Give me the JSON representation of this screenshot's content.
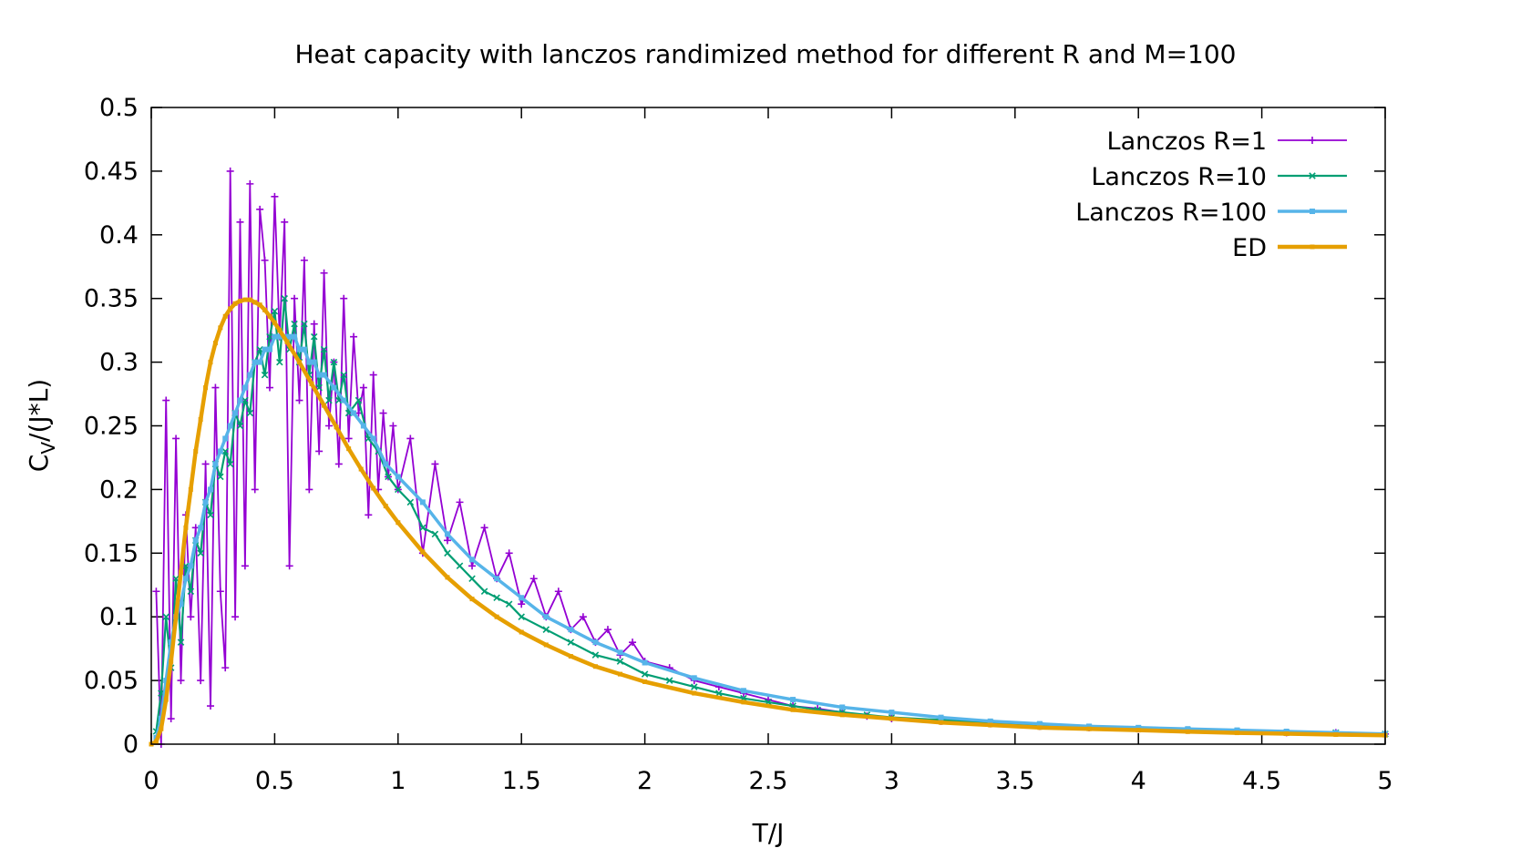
{
  "chart_data": {
    "type": "line",
    "title": "Heat capacity with lanczos randimized method for different R and M=100",
    "xlabel": "T/J",
    "ylabel_main": "C",
    "ylabel_sub": "V",
    "ylabel_rest": "/(J*L)",
    "xlim": [
      0,
      5
    ],
    "ylim": [
      0,
      0.5
    ],
    "x_ticks": [
      0,
      0.5,
      1,
      1.5,
      2,
      2.5,
      3,
      3.5,
      4,
      4.5,
      5
    ],
    "y_ticks": [
      0,
      0.05,
      0.1,
      0.15,
      0.2,
      0.25,
      0.3,
      0.35,
      0.4,
      0.45,
      0.5
    ],
    "grid": false,
    "legend_position": "top-right",
    "series": [
      {
        "name": "Lanczos R=1",
        "color": "#9400d3",
        "marker": "plus",
        "x": [
          0.02,
          0.04,
          0.06,
          0.08,
          0.1,
          0.12,
          0.14,
          0.16,
          0.18,
          0.2,
          0.22,
          0.24,
          0.26,
          0.28,
          0.3,
          0.32,
          0.34,
          0.36,
          0.38,
          0.4,
          0.42,
          0.44,
          0.46,
          0.48,
          0.5,
          0.52,
          0.54,
          0.56,
          0.58,
          0.6,
          0.62,
          0.64,
          0.66,
          0.68,
          0.7,
          0.72,
          0.74,
          0.76,
          0.78,
          0.8,
          0.82,
          0.84,
          0.86,
          0.88,
          0.9,
          0.92,
          0.94,
          0.96,
          0.98,
          1.0,
          1.05,
          1.1,
          1.15,
          1.2,
          1.25,
          1.3,
          1.35,
          1.4,
          1.45,
          1.5,
          1.55,
          1.6,
          1.65,
          1.7,
          1.75,
          1.8,
          1.85,
          1.9,
          1.95,
          2.0,
          2.1,
          2.2,
          2.3,
          2.4,
          2.5,
          2.6,
          2.7,
          2.8,
          2.9,
          3.0,
          3.2,
          3.4,
          3.6,
          3.8,
          4.0,
          4.2,
          4.4,
          4.6,
          4.8,
          5.0
        ],
        "y": [
          0.12,
          0.0,
          0.27,
          0.02,
          0.24,
          0.05,
          0.18,
          0.1,
          0.17,
          0.05,
          0.22,
          0.03,
          0.28,
          0.12,
          0.06,
          0.45,
          0.1,
          0.41,
          0.14,
          0.44,
          0.2,
          0.42,
          0.38,
          0.28,
          0.43,
          0.32,
          0.41,
          0.14,
          0.35,
          0.27,
          0.38,
          0.2,
          0.33,
          0.23,
          0.37,
          0.25,
          0.3,
          0.22,
          0.35,
          0.24,
          0.32,
          0.26,
          0.28,
          0.18,
          0.29,
          0.2,
          0.26,
          0.21,
          0.25,
          0.2,
          0.24,
          0.15,
          0.22,
          0.16,
          0.19,
          0.14,
          0.17,
          0.13,
          0.15,
          0.11,
          0.13,
          0.1,
          0.12,
          0.09,
          0.1,
          0.08,
          0.09,
          0.07,
          0.08,
          0.065,
          0.06,
          0.05,
          0.045,
          0.04,
          0.035,
          0.03,
          0.028,
          0.025,
          0.022,
          0.02,
          0.018,
          0.016,
          0.014,
          0.013,
          0.012,
          0.011,
          0.01,
          0.009,
          0.009,
          0.008
        ]
      },
      {
        "name": "Lanczos R=10",
        "color": "#009e73",
        "marker": "x",
        "x": [
          0.02,
          0.04,
          0.06,
          0.08,
          0.1,
          0.12,
          0.14,
          0.16,
          0.18,
          0.2,
          0.22,
          0.24,
          0.26,
          0.28,
          0.3,
          0.32,
          0.34,
          0.36,
          0.38,
          0.4,
          0.42,
          0.44,
          0.46,
          0.48,
          0.5,
          0.52,
          0.54,
          0.56,
          0.58,
          0.6,
          0.62,
          0.64,
          0.66,
          0.68,
          0.7,
          0.72,
          0.74,
          0.76,
          0.78,
          0.8,
          0.84,
          0.88,
          0.92,
          0.96,
          1.0,
          1.05,
          1.1,
          1.15,
          1.2,
          1.25,
          1.3,
          1.35,
          1.4,
          1.45,
          1.5,
          1.6,
          1.7,
          1.8,
          1.9,
          2.0,
          2.1,
          2.2,
          2.3,
          2.4,
          2.5,
          2.6,
          2.7,
          2.8,
          2.9,
          3.0,
          3.2,
          3.4,
          3.6,
          3.8,
          4.0,
          4.2,
          4.4,
          4.6,
          4.8,
          5.0
        ],
        "y": [
          0.01,
          0.04,
          0.1,
          0.06,
          0.13,
          0.08,
          0.14,
          0.12,
          0.16,
          0.15,
          0.19,
          0.18,
          0.22,
          0.21,
          0.23,
          0.22,
          0.26,
          0.25,
          0.27,
          0.26,
          0.3,
          0.31,
          0.29,
          0.32,
          0.34,
          0.3,
          0.35,
          0.31,
          0.33,
          0.3,
          0.33,
          0.29,
          0.32,
          0.28,
          0.31,
          0.27,
          0.3,
          0.27,
          0.29,
          0.26,
          0.27,
          0.24,
          0.23,
          0.21,
          0.2,
          0.19,
          0.17,
          0.165,
          0.15,
          0.14,
          0.13,
          0.12,
          0.115,
          0.11,
          0.1,
          0.09,
          0.08,
          0.07,
          0.065,
          0.055,
          0.05,
          0.045,
          0.04,
          0.036,
          0.033,
          0.03,
          0.027,
          0.025,
          0.023,
          0.021,
          0.019,
          0.017,
          0.015,
          0.013,
          0.012,
          0.011,
          0.01,
          0.009,
          0.009,
          0.008
        ]
      },
      {
        "name": "Lanczos R=100",
        "color": "#56b4e9",
        "marker": "square",
        "x": [
          0.02,
          0.04,
          0.06,
          0.08,
          0.1,
          0.12,
          0.14,
          0.16,
          0.18,
          0.2,
          0.22,
          0.24,
          0.26,
          0.28,
          0.3,
          0.32,
          0.34,
          0.36,
          0.38,
          0.4,
          0.42,
          0.44,
          0.46,
          0.48,
          0.5,
          0.52,
          0.54,
          0.56,
          0.58,
          0.6,
          0.62,
          0.64,
          0.66,
          0.68,
          0.7,
          0.74,
          0.78,
          0.82,
          0.86,
          0.9,
          0.95,
          1.0,
          1.1,
          1.2,
          1.3,
          1.4,
          1.5,
          1.6,
          1.7,
          1.8,
          1.9,
          2.0,
          2.2,
          2.4,
          2.6,
          2.8,
          3.0,
          3.2,
          3.4,
          3.6,
          3.8,
          4.0,
          4.2,
          4.4,
          4.6,
          4.8,
          5.0
        ],
        "y": [
          0.005,
          0.02,
          0.05,
          0.08,
          0.1,
          0.11,
          0.13,
          0.14,
          0.16,
          0.17,
          0.19,
          0.2,
          0.22,
          0.23,
          0.24,
          0.25,
          0.26,
          0.27,
          0.28,
          0.29,
          0.3,
          0.3,
          0.31,
          0.31,
          0.32,
          0.32,
          0.32,
          0.32,
          0.32,
          0.31,
          0.31,
          0.3,
          0.3,
          0.29,
          0.29,
          0.28,
          0.27,
          0.26,
          0.25,
          0.24,
          0.22,
          0.21,
          0.19,
          0.165,
          0.145,
          0.13,
          0.115,
          0.1,
          0.09,
          0.08,
          0.072,
          0.064,
          0.052,
          0.042,
          0.035,
          0.029,
          0.025,
          0.021,
          0.018,
          0.016,
          0.014,
          0.013,
          0.012,
          0.011,
          0.01,
          0.009,
          0.008
        ]
      },
      {
        "name": "ED",
        "color": "#e69f00",
        "marker": "square",
        "x": [
          0.0,
          0.02,
          0.04,
          0.06,
          0.08,
          0.1,
          0.12,
          0.14,
          0.16,
          0.18,
          0.2,
          0.22,
          0.24,
          0.26,
          0.28,
          0.3,
          0.32,
          0.34,
          0.36,
          0.38,
          0.4,
          0.42,
          0.44,
          0.46,
          0.48,
          0.5,
          0.52,
          0.55,
          0.6,
          0.65,
          0.7,
          0.75,
          0.8,
          0.85,
          0.9,
          0.95,
          1.0,
          1.1,
          1.2,
          1.3,
          1.4,
          1.5,
          1.6,
          1.7,
          1.8,
          1.9,
          2.0,
          2.2,
          2.4,
          2.6,
          2.8,
          3.0,
          3.2,
          3.4,
          3.6,
          3.8,
          4.0,
          4.2,
          4.4,
          4.6,
          4.8,
          5.0
        ],
        "y": [
          0.0,
          0.002,
          0.012,
          0.035,
          0.065,
          0.1,
          0.135,
          0.17,
          0.2,
          0.23,
          0.255,
          0.28,
          0.3,
          0.315,
          0.327,
          0.336,
          0.342,
          0.346,
          0.348,
          0.349,
          0.349,
          0.347,
          0.345,
          0.341,
          0.336,
          0.331,
          0.325,
          0.316,
          0.3,
          0.283,
          0.266,
          0.249,
          0.232,
          0.216,
          0.201,
          0.187,
          0.174,
          0.151,
          0.131,
          0.114,
          0.1,
          0.088,
          0.078,
          0.069,
          0.061,
          0.055,
          0.049,
          0.04,
          0.033,
          0.027,
          0.023,
          0.02,
          0.017,
          0.015,
          0.013,
          0.012,
          0.011,
          0.0098,
          0.0089,
          0.0082,
          0.0075,
          0.007
        ]
      }
    ]
  }
}
